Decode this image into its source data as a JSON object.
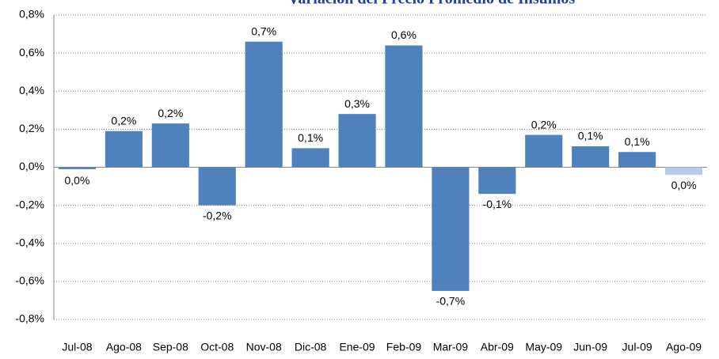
{
  "chart_data": {
    "type": "bar",
    "title": "Variación del Precio Promedio de Insumos",
    "categories": [
      "Jul-08",
      "Ago-08",
      "Sep-08",
      "Oct-08",
      "Nov-08",
      "Dic-08",
      "Ene-09",
      "Feb-09",
      "Mar-09",
      "Abr-09",
      "May-09",
      "Jun-09",
      "Jul-09",
      "Ago-09"
    ],
    "values": [
      -0.01,
      0.19,
      0.23,
      -0.2,
      0.66,
      0.1,
      0.28,
      0.64,
      -0.65,
      -0.14,
      0.17,
      0.11,
      0.08,
      -0.04
    ],
    "value_labels": [
      "0,0%",
      "0,2%",
      "0,2%",
      "-0,2%",
      "0,7%",
      "0,1%",
      "0,3%",
      "0,6%",
      "-0,7%",
      "-0,1%",
      "0,2%",
      "0,1%",
      "0,1%",
      "0,0%"
    ],
    "colors": [
      "#4f81bd",
      "#4f81bd",
      "#4f81bd",
      "#4f81bd",
      "#4f81bd",
      "#4f81bd",
      "#4f81bd",
      "#4f81bd",
      "#4f81bd",
      "#4f81bd",
      "#4f81bd",
      "#4f81bd",
      "#4f81bd",
      "#b9cbe8"
    ],
    "ylim": [
      -0.8,
      0.8
    ],
    "yticks": [
      {
        "value": -0.8,
        "label": "-0,8%"
      },
      {
        "value": -0.6,
        "label": "-0,6%"
      },
      {
        "value": -0.4,
        "label": "-0,4%"
      },
      {
        "value": -0.2,
        "label": "-0,2%"
      },
      {
        "value": 0,
        "label": "0,0%"
      },
      {
        "value": 0.2,
        "label": "0,2%"
      },
      {
        "value": 0.4,
        "label": "0,4%"
      },
      {
        "value": 0.6,
        "label": "0,6%"
      },
      {
        "value": 0.8,
        "label": "0,8%"
      }
    ],
    "grid": true
  }
}
